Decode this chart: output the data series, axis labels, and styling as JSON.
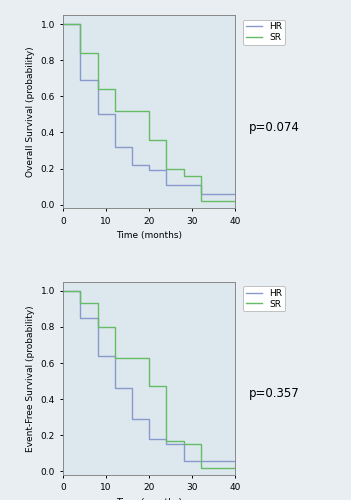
{
  "os_hr_x": [
    0,
    4,
    4,
    8,
    8,
    12,
    12,
    16,
    16,
    20,
    20,
    24,
    24,
    28,
    28,
    32,
    32,
    40
  ],
  "os_hr_y": [
    1.0,
    1.0,
    0.69,
    0.69,
    0.5,
    0.5,
    0.32,
    0.32,
    0.22,
    0.22,
    0.19,
    0.19,
    0.11,
    0.11,
    0.11,
    0.11,
    0.06,
    0.06
  ],
  "os_sr_x": [
    0,
    4,
    4,
    8,
    8,
    12,
    12,
    20,
    20,
    24,
    24,
    28,
    28,
    32,
    32,
    40
  ],
  "os_sr_y": [
    1.0,
    1.0,
    0.84,
    0.84,
    0.64,
    0.64,
    0.52,
    0.52,
    0.36,
    0.36,
    0.2,
    0.2,
    0.16,
    0.16,
    0.02,
    0.02
  ],
  "efs_hr_x": [
    0,
    4,
    4,
    8,
    8,
    12,
    12,
    16,
    16,
    20,
    20,
    24,
    24,
    28,
    28,
    32,
    32,
    40
  ],
  "efs_hr_y": [
    1.0,
    1.0,
    0.85,
    0.85,
    0.64,
    0.64,
    0.46,
    0.46,
    0.29,
    0.29,
    0.18,
    0.18,
    0.15,
    0.15,
    0.06,
    0.06,
    0.06,
    0.06
  ],
  "efs_sr_x": [
    0,
    4,
    4,
    8,
    8,
    12,
    12,
    20,
    20,
    24,
    24,
    28,
    28,
    32,
    32,
    40
  ],
  "efs_sr_y": [
    1.0,
    1.0,
    0.93,
    0.93,
    0.8,
    0.8,
    0.63,
    0.63,
    0.47,
    0.47,
    0.17,
    0.17,
    0.15,
    0.15,
    0.02,
    0.02
  ],
  "hr_color": "#8899cc",
  "sr_color": "#66bb66",
  "plot_bg_color": "#dde8ee",
  "fig_bg_color": "#e8eef2",
  "os_pvalue": "p=0.074",
  "efs_pvalue": "p=0.357",
  "os_ylabel": "Overall Survival (probability)",
  "efs_ylabel": "Event-Free Survival (probability)",
  "xlabel": "Time (months)",
  "xlim": [
    0,
    40
  ],
  "ylim": [
    -0.02,
    1.05
  ],
  "xticks": [
    0,
    10,
    20,
    30,
    40
  ],
  "yticks": [
    0.0,
    0.2,
    0.4,
    0.6,
    0.8,
    1.0
  ],
  "fontsize_tick": 6.5,
  "fontsize_label": 6.5,
  "fontsize_legend": 6.5,
  "fontsize_pvalue": 8.5,
  "linewidth": 1.0
}
